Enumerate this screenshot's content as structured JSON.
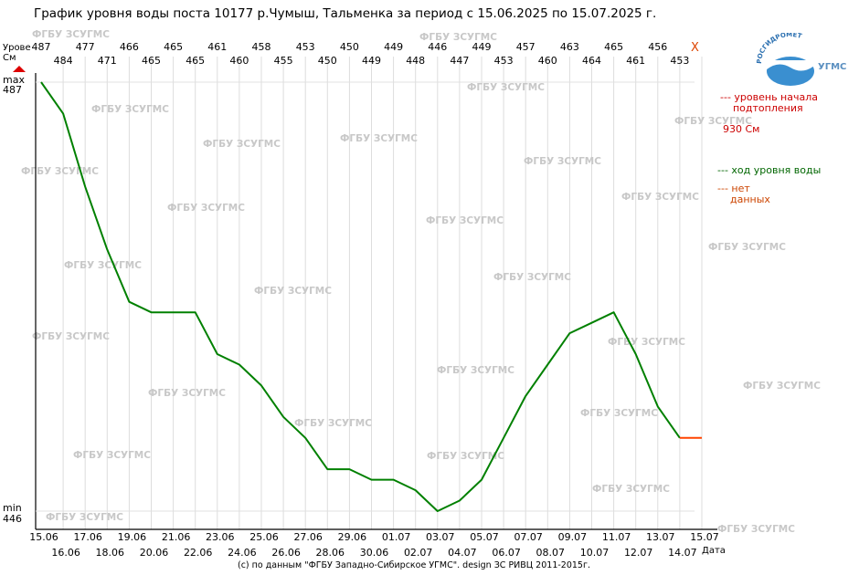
{
  "title": "График уровня воды поста 10177 р.Чумыш, Тальменка за период с 15.06.2025 по 15.07.2025 г.",
  "footer": "(с) по данным \"ФГБУ Западно-Сибирское УГМС\". design ЗС РИВЦ 2011-2015г.",
  "watermark": "ФГБУ ЗСУГМС",
  "logo": {
    "arc_text": "РОСГИДРОМЕТ",
    "name": "УГМС",
    "icon": "rosgidromet-logo-icon"
  },
  "close_mark": "X",
  "y_unit_label": "Урове\nСм",
  "max_label": "max",
  "max_value": "487",
  "min_label": "min",
  "min_value": "446",
  "x_unit_label": "Дата",
  "legend": {
    "flood_label": "--- уровень начала\n    подтопления",
    "flood_value": "930 См",
    "gauge_label": "--- ход уровня воды",
    "nodata_label": "--- нет\n    данных"
  },
  "colors": {
    "level_line": "#008000",
    "nodata_line": "#ff4400",
    "flood_text": "#cc0000",
    "watermark": "#c8c8c8",
    "grid": "#dddddd",
    "max_marker": "#dd0000"
  },
  "chart_data": {
    "type": "line",
    "x": [
      "15.06",
      "16.06",
      "17.06",
      "18.06",
      "19.06",
      "20.06",
      "21.06",
      "22.06",
      "23.06",
      "24.06",
      "25.06",
      "26.06",
      "27.06",
      "28.06",
      "29.06",
      "30.06",
      "01.07",
      "02.07",
      "03.07",
      "04.07",
      "05.07",
      "06.07",
      "07.07",
      "08.07",
      "09.07",
      "10.07",
      "11.07",
      "12.07",
      "13.07",
      "14.07",
      "15.07"
    ],
    "series": [
      {
        "name": "ход уровня воды",
        "values": [
          487,
          484,
          477,
          471,
          466,
          465,
          465,
          465,
          461,
          460,
          458,
          455,
          453,
          450,
          450,
          449,
          449,
          448,
          446,
          447,
          449,
          453,
          457,
          460,
          463,
          464,
          465,
          461,
          456,
          453,
          null
        ]
      },
      {
        "name": "нет данных",
        "values": [
          null,
          null,
          null,
          null,
          null,
          null,
          null,
          null,
          null,
          null,
          null,
          null,
          null,
          null,
          null,
          null,
          null,
          null,
          null,
          null,
          null,
          null,
          null,
          null,
          null,
          null,
          null,
          null,
          null,
          453,
          453
        ]
      }
    ],
    "ylim": [
      446,
      487
    ],
    "grid": "vertical",
    "ylabel": "Урове См",
    "xlabel": "Дата"
  }
}
